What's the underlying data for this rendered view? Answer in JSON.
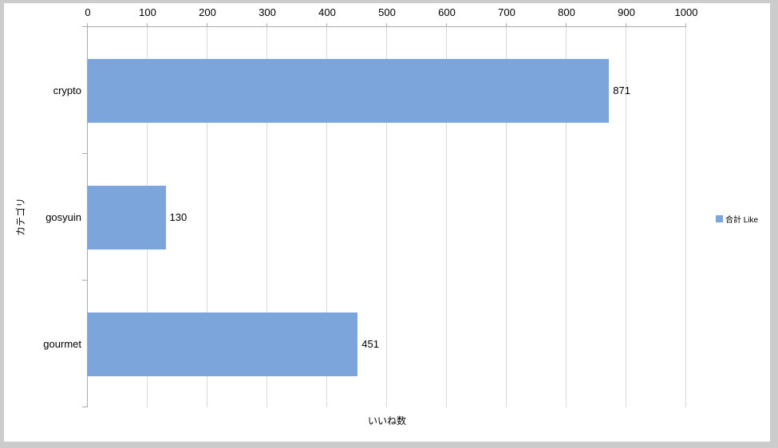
{
  "chart_data": {
    "type": "bar",
    "orientation": "horizontal",
    "title": "",
    "xlabel": "いいね数",
    "ylabel": "カテゴリ",
    "categories": [
      "crypto",
      "gosyuin",
      "gourmet"
    ],
    "series": [
      {
        "name": "合計 Like",
        "values": [
          871,
          130,
          451
        ]
      }
    ],
    "data_labels": [
      "871",
      "130",
      "451"
    ],
    "xlim": [
      0,
      1000
    ],
    "xticks": [
      "0",
      "100",
      "200",
      "300",
      "400",
      "500",
      "600",
      "700",
      "800",
      "900",
      "1000"
    ],
    "grid": "major-vertical-gridlines",
    "legend_position": "right-middle",
    "value_axis_position": "top",
    "colors": {
      "bar": "#7CA5DB",
      "gridline": "#D9D9D9",
      "axis": "#ABABAB",
      "text": "#000000",
      "frame": "#CCCCCC",
      "background": "#FFFFFF"
    }
  }
}
